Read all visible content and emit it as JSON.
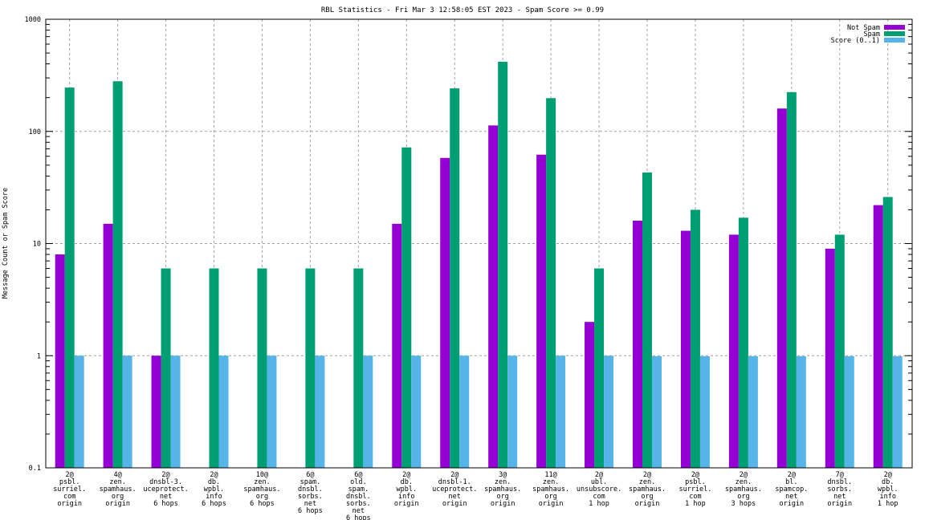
{
  "chart_data": {
    "type": "bar",
    "title": "RBL Statistics - Fri Mar  3 12:58:05 EST 2023 - Spam Score >= 0.99",
    "xlabel": "",
    "ylabel": "Message Count or Spam Score",
    "yscale": "log",
    "ylim": [
      0.1,
      1000
    ],
    "yticks": [
      "0.1",
      "1",
      "10",
      "100",
      "1000"
    ],
    "grid": true,
    "legend_position": "top-right",
    "categories": [
      [
        "2@",
        "psbl.",
        "surriel.",
        "com",
        "origin"
      ],
      [
        "4@",
        "zen.",
        "spamhaus.",
        "org",
        "origin"
      ],
      [
        "2@",
        "dnsbl-3.",
        "uceprotect.",
        "net",
        "6 hops"
      ],
      [
        "2@",
        "db.",
        "wpbl.",
        "info",
        "6 hops"
      ],
      [
        "10@",
        "zen.",
        "spamhaus.",
        "org",
        "6 hops"
      ],
      [
        "6@",
        "spam.",
        "dnsbl.",
        "sorbs.",
        "net",
        "6 hops"
      ],
      [
        "6@",
        "old.",
        "spam.",
        "dnsbl.",
        "sorbs.",
        "net",
        "6 hops"
      ],
      [
        "2@",
        "db.",
        "wpbl.",
        "info",
        "origin"
      ],
      [
        "2@",
        "dnsbl-1.",
        "uceprotect.",
        "net",
        "origin"
      ],
      [
        "3@",
        "zen.",
        "spamhaus.",
        "org",
        "origin"
      ],
      [
        "11@",
        "zen.",
        "spamhaus.",
        "org",
        "origin"
      ],
      [
        "2@",
        "ubl.",
        "unsubscore.",
        "com",
        "1 hop"
      ],
      [
        "2@",
        "zen.",
        "spamhaus.",
        "org",
        "origin"
      ],
      [
        "2@",
        "psbl.",
        "surriel.",
        "com",
        "1 hop"
      ],
      [
        "2@",
        "zen.",
        "spamhaus.",
        "org",
        "3 hops"
      ],
      [
        "2@",
        "bl.",
        "spamcop.",
        "net",
        "origin"
      ],
      [
        "7@",
        "dnsbl.",
        "sorbs.",
        "net",
        "origin"
      ],
      [
        "2@",
        "db.",
        "wpbl.",
        "info",
        "1 hop"
      ]
    ],
    "series": [
      {
        "name": "Not Spam",
        "color": "#9400d3",
        "values": [
          8,
          15,
          1,
          0,
          0,
          0,
          0,
          15,
          58,
          113,
          62,
          2,
          16,
          13,
          12,
          160,
          9,
          22
        ]
      },
      {
        "name": "Spam",
        "color": "#009e73",
        "values": [
          246,
          280,
          6,
          6,
          6,
          6,
          6,
          72,
          242,
          418,
          198,
          6,
          43,
          20,
          17,
          224,
          12,
          26
        ]
      },
      {
        "name": "Score (0..1)",
        "color": "#56b4e9",
        "values": [
          1,
          1,
          1,
          1,
          1,
          1,
          1,
          1,
          1,
          1,
          1,
          1,
          0.99,
          0.99,
          0.99,
          0.99,
          0.99,
          0.99
        ]
      }
    ]
  }
}
